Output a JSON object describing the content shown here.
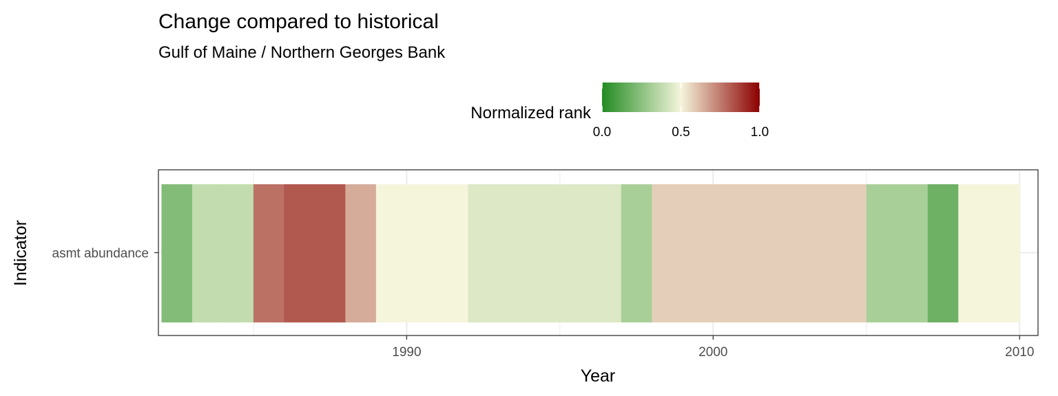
{
  "chart_data": {
    "type": "heatmap",
    "title": "Change compared to historical",
    "subtitle": "Gulf of Maine / Northern Georges Bank",
    "xlabel": "Year",
    "ylabel": "Indicator",
    "categories_y": [
      "asmt abundance"
    ],
    "xlim": [
      1981.9,
      2010.6
    ],
    "x_ticks": [
      "1990",
      "2000",
      "2010"
    ],
    "grid": true,
    "legend": {
      "title": "Normalized rank",
      "position": "top",
      "ticks": [
        "0.0",
        "0.5",
        "1.0"
      ],
      "low_color": "#228b22",
      "mid_color": "#f5f5dc",
      "high_color": "#8b0000",
      "midpoint": 0.5
    },
    "cells": [
      {
        "year": 1983,
        "value": 0.23
      },
      {
        "year": 1984,
        "value": 0.38
      },
      {
        "year": 1985,
        "value": 0.38
      },
      {
        "year": 1986,
        "value": 0.77
      },
      {
        "year": 1987,
        "value": 0.82
      },
      {
        "year": 1988,
        "value": 0.82
      },
      {
        "year": 1989,
        "value": 0.65
      },
      {
        "year": 1990,
        "value": 0.5
      },
      {
        "year": 1991,
        "value": 0.5
      },
      {
        "year": 1992,
        "value": 0.5
      },
      {
        "year": 1993,
        "value": 0.44
      },
      {
        "year": 1994,
        "value": 0.44
      },
      {
        "year": 1995,
        "value": 0.44
      },
      {
        "year": 1996,
        "value": 0.44
      },
      {
        "year": 1997,
        "value": 0.44
      },
      {
        "year": 1998,
        "value": 0.32
      },
      {
        "year": 1999,
        "value": 0.58
      },
      {
        "year": 2000,
        "value": 0.58
      },
      {
        "year": 2001,
        "value": 0.58
      },
      {
        "year": 2002,
        "value": 0.58
      },
      {
        "year": 2003,
        "value": 0.58
      },
      {
        "year": 2004,
        "value": 0.58
      },
      {
        "year": 2005,
        "value": 0.58
      },
      {
        "year": 2006,
        "value": 0.32
      },
      {
        "year": 2007,
        "value": 0.32
      },
      {
        "year": 2008,
        "value": 0.18
      },
      {
        "year": 2009,
        "value": 0.5
      },
      {
        "year": 2010,
        "value": 0.5
      }
    ]
  }
}
